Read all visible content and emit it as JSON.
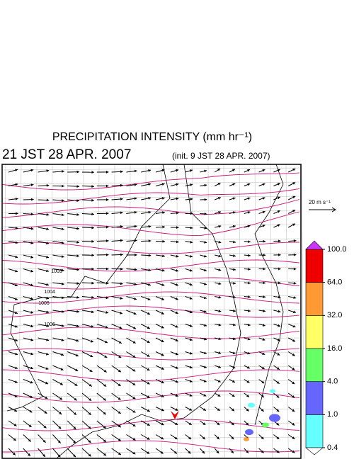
{
  "title": "PRECIPITATION INTENSITY (mm hr⁻¹)",
  "valid_time": "21 JST 28 APR. 2007",
  "init_time": "(init. 9 JST 28 APR. 2007)",
  "vector_legend": "20 m s⁻¹",
  "colorbar": {
    "ticks": [
      {
        "value": 0.4,
        "label": "0.4"
      },
      {
        "value": 1,
        "label": "1.0"
      },
      {
        "value": 4,
        "label": "4.0"
      },
      {
        "value": 16,
        "label": "16.0"
      },
      {
        "value": 32,
        "label": "32.0"
      },
      {
        "value": 64,
        "label": "64.0"
      },
      {
        "value": 100,
        "label": "100.0"
      }
    ],
    "colors": [
      "#66ffff",
      "#6666ff",
      "#66ff66",
      "#ffff66",
      "#ff9933",
      "#ee0000"
    ],
    "under_color": "#ffffff",
    "over_color": "#cc33ff"
  },
  "isobar_labels": [
    "1003",
    "1004",
    "1005",
    "1006"
  ]
}
